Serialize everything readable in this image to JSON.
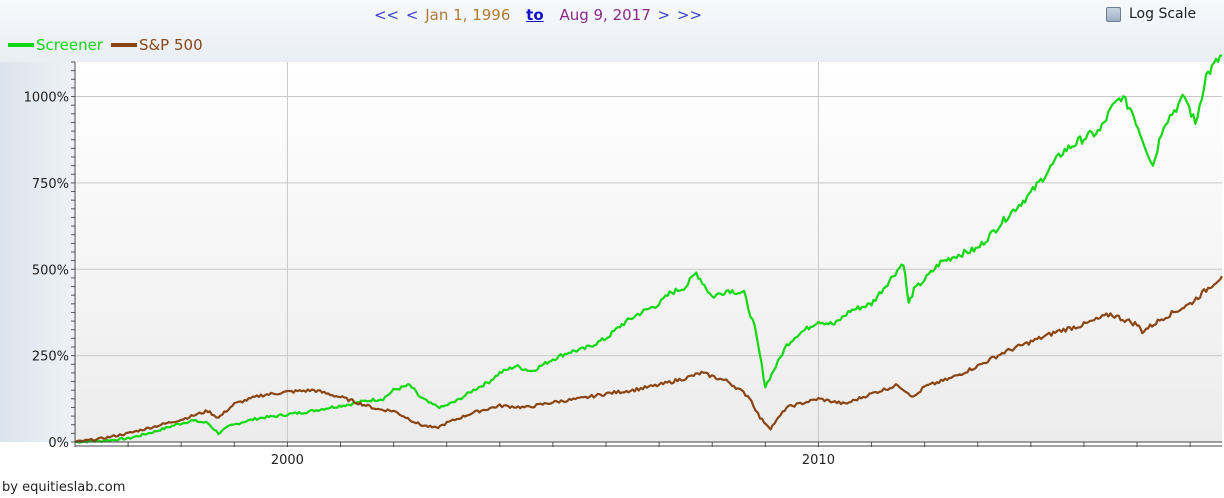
{
  "range": {
    "prev_all": "<<",
    "prev": "<",
    "start": "Jan 1, 1996",
    "to": "to",
    "end": "Aug 9, 2017",
    "next": ">",
    "next_all": ">>"
  },
  "log_scale_label": "Log Scale",
  "footer": "by equitieslab.com",
  "colors": {
    "screener": "#12d812",
    "sp500": "#8b4513",
    "grid": "#c8c8c8"
  },
  "chart_data": {
    "type": "line",
    "xlim": [
      1996.0,
      2017.6
    ],
    "ylim": [
      0,
      1100
    ],
    "y_ticks": [
      0,
      250,
      500,
      750,
      1000
    ],
    "y_tick_labels": [
      "0%",
      "250%",
      "500%",
      "750%",
      "1000%"
    ],
    "x_ticks": [
      2000,
      2010
    ],
    "x_tick_labels": [
      "2000",
      "2010"
    ],
    "grid": true,
    "legend_position": "top-left",
    "series": [
      {
        "name": "Screener",
        "x": [
          1996.0,
          1996.5,
          1997.0,
          1997.5,
          1997.9,
          1998.2,
          1998.5,
          1998.7,
          1998.9,
          1999.2,
          1999.5,
          1999.8,
          2000.0,
          2000.4,
          2000.8,
          2001.2,
          2001.5,
          2001.8,
          2002.0,
          2002.3,
          2002.5,
          2002.7,
          2002.9,
          2003.2,
          2003.5,
          2003.8,
          2004.0,
          2004.3,
          2004.6,
          2005.0,
          2005.3,
          2005.6,
          2006.0,
          2006.3,
          2006.6,
          2007.0,
          2007.2,
          2007.5,
          2007.7,
          2008.0,
          2008.3,
          2008.6,
          2008.8,
          2008.9,
          2009.0,
          2009.2,
          2009.4,
          2009.6,
          2010.0,
          2010.3,
          2010.6,
          2011.0,
          2011.3,
          2011.6,
          2011.7,
          2011.8,
          2012.0,
          2012.3,
          2012.6,
          2013.0,
          2013.3,
          2013.6,
          2014.0,
          2014.3,
          2014.6,
          2015.0,
          2015.3,
          2015.5,
          2015.7,
          2015.9,
          2016.1,
          2016.3,
          2016.5,
          2016.7,
          2016.9,
          2017.1,
          2017.3,
          2017.6
        ],
        "values": [
          0,
          3,
          10,
          30,
          50,
          62,
          55,
          25,
          45,
          60,
          70,
          75,
          80,
          88,
          100,
          110,
          120,
          125,
          150,
          165,
          130,
          110,
          100,
          120,
          150,
          175,
          200,
          220,
          205,
          240,
          260,
          270,
          300,
          340,
          370,
          400,
          430,
          450,
          490,
          420,
          440,
          430,
          330,
          250,
          160,
          220,
          280,
          310,
          350,
          340,
          380,
          400,
          460,
          520,
          400,
          440,
          470,
          520,
          540,
          560,
          610,
          660,
          720,
          780,
          840,
          880,
          900,
          960,
          1000,
          960,
          880,
          800,
          920,
          960,
          1000,
          920,
          1060,
          1120
        ]
      },
      {
        "name": "S&P 500",
        "x": [
          1996.0,
          1996.5,
          1997.0,
          1997.5,
          1998.0,
          1998.5,
          1998.7,
          1999.0,
          1999.5,
          2000.0,
          2000.5,
          2001.0,
          2001.3,
          2001.7,
          2002.0,
          2002.5,
          2002.8,
          2003.0,
          2003.5,
          2004.0,
          2004.5,
          2005.0,
          2005.5,
          2006.0,
          2006.5,
          2007.0,
          2007.5,
          2007.8,
          2008.3,
          2008.7,
          2008.9,
          2009.1,
          2009.4,
          2010.0,
          2010.5,
          2011.0,
          2011.5,
          2011.8,
          2012.0,
          2012.5,
          2013.0,
          2013.5,
          2014.0,
          2014.5,
          2015.0,
          2015.5,
          2016.0,
          2016.1,
          2016.5,
          2017.0,
          2017.6
        ],
        "values": [
          0,
          10,
          25,
          45,
          65,
          90,
          70,
          110,
          135,
          145,
          150,
          130,
          115,
          95,
          90,
          50,
          40,
          55,
          85,
          105,
          100,
          115,
          125,
          140,
          150,
          165,
          185,
          200,
          175,
          130,
          70,
          40,
          100,
          125,
          110,
          140,
          165,
          130,
          160,
          185,
          220,
          260,
          290,
          320,
          340,
          370,
          340,
          320,
          360,
          400,
          480
        ]
      }
    ]
  }
}
